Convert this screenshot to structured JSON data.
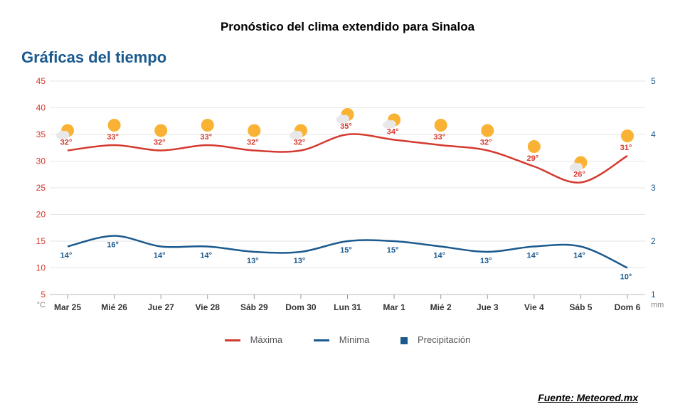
{
  "title": "Pronóstico del clima extendido para Sinaloa",
  "section_title": "Gráficas del tiempo",
  "source": "Fuente: Meteored.mx",
  "chart": {
    "type": "line",
    "background_color": "#ffffff",
    "grid_color": "#e6e6e6",
    "left_axis": {
      "label": "°C",
      "color": "#d43a2f",
      "min": 5,
      "max": 45,
      "step": 5
    },
    "right_axis": {
      "label": "mm",
      "color": "#1b5a8e",
      "min": 1,
      "max": 5,
      "step": 1
    },
    "categories": [
      "Mar 25",
      "Mié 26",
      "Jue 27",
      "Vie 28",
      "Sáb 29",
      "Dom 30",
      "Lun 31",
      "Mar 1",
      "Mié 2",
      "Jue 3",
      "Vie 4",
      "Sáb 5",
      "Dom 6"
    ],
    "series_max": {
      "name": "Máxima",
      "color": "#d43a2f",
      "line_width": 2.5,
      "values": [
        32,
        33,
        32,
        33,
        32,
        32,
        35,
        34,
        33,
        32,
        29,
        26,
        31
      ]
    },
    "series_min": {
      "name": "Mínima",
      "color": "#1b5a8e",
      "line_width": 2.5,
      "values": [
        14,
        16,
        14,
        14,
        13,
        13,
        15,
        15,
        14,
        13,
        14,
        14,
        10
      ]
    },
    "series_precip": {
      "name": "Precipitación",
      "color": "#1b5a8e"
    },
    "icons": [
      "partly_cloudy",
      "sunny",
      "sunny",
      "sunny",
      "sunny",
      "partly_cloudy",
      "partly_cloudy",
      "partly_cloudy",
      "sunny",
      "sunny",
      "sunny",
      "partly_cloudy",
      "sunny"
    ],
    "icon_colors": {
      "sun": "#f9b233",
      "cloud": "#e8e8e8"
    },
    "label_fontsize": 11,
    "axis_fontsize": 12
  },
  "legend": {
    "max": "Máxima",
    "min": "Mínima",
    "precip": "Precipitación"
  }
}
